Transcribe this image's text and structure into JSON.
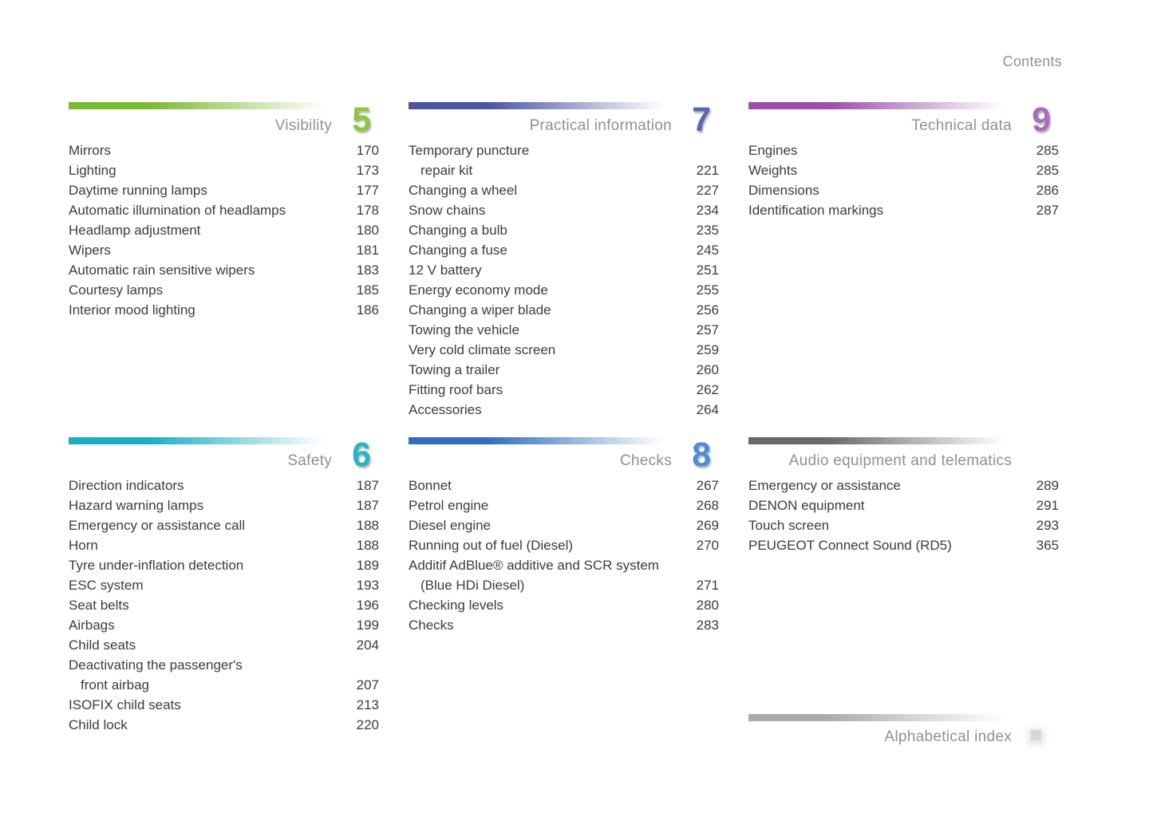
{
  "header": {
    "title": "Contents"
  },
  "footer": {
    "alphabetical_index": "Alphabetical index",
    "bar_color": "#a9abad"
  },
  "sections": [
    {
      "id": "visibility",
      "title": "Visibility",
      "number": "5",
      "number_color": "#8ec63f",
      "bar_color": "#79b933",
      "items": [
        {
          "lines": [
            "Mirrors"
          ],
          "page": "170"
        },
        {
          "lines": [
            "Lighting"
          ],
          "page": "173"
        },
        {
          "lines": [
            "Daytime running lamps"
          ],
          "page": "177"
        },
        {
          "lines": [
            "Automatic illumination of headlamps"
          ],
          "page": "178"
        },
        {
          "lines": [
            "Headlamp adjustment"
          ],
          "page": "180"
        },
        {
          "lines": [
            "Wipers"
          ],
          "page": "181"
        },
        {
          "lines": [
            "Automatic rain sensitive wipers"
          ],
          "page": "183"
        },
        {
          "lines": [
            "Courtesy lamps"
          ],
          "page": "185"
        },
        {
          "lines": [
            "Interior mood lighting"
          ],
          "page": "186"
        }
      ]
    },
    {
      "id": "practical-information",
      "title": "Practical information",
      "number": "7",
      "number_color": "#5b68b2",
      "bar_color": "#4d55a1",
      "items": [
        {
          "lines": [
            "Temporary puncture",
            "repair kit"
          ],
          "page": "221"
        },
        {
          "lines": [
            "Changing a wheel"
          ],
          "page": "227"
        },
        {
          "lines": [
            "Snow chains"
          ],
          "page": "234"
        },
        {
          "lines": [
            "Changing a bulb"
          ],
          "page": "235"
        },
        {
          "lines": [
            "Changing a fuse"
          ],
          "page": "245"
        },
        {
          "lines": [
            "12 V battery"
          ],
          "page": "251"
        },
        {
          "lines": [
            "Energy economy mode"
          ],
          "page": "255"
        },
        {
          "lines": [
            "Changing a wiper blade"
          ],
          "page": "256"
        },
        {
          "lines": [
            "Towing the vehicle"
          ],
          "page": "257"
        },
        {
          "lines": [
            "Very cold climate screen"
          ],
          "page": "259"
        },
        {
          "lines": [
            "Towing a trailer"
          ],
          "page": "260"
        },
        {
          "lines": [
            "Fitting roof bars"
          ],
          "page": "262"
        },
        {
          "lines": [
            "Accessories"
          ],
          "page": "264"
        }
      ]
    },
    {
      "id": "technical-data",
      "title": "Technical data",
      "number": "9",
      "number_color": "#a56dbc",
      "bar_color": "#9a50a8",
      "items": [
        {
          "lines": [
            "Engines"
          ],
          "page": "285"
        },
        {
          "lines": [
            "Weights"
          ],
          "page": "285"
        },
        {
          "lines": [
            "Dimensions"
          ],
          "page": "286"
        },
        {
          "lines": [
            "Identification markings"
          ],
          "page": "287"
        }
      ]
    },
    {
      "id": "safety",
      "title": "Safety",
      "number": "6",
      "number_color": "#29b3c7",
      "bar_color": "#17afc2",
      "items": [
        {
          "lines": [
            "Direction indicators"
          ],
          "page": "187"
        },
        {
          "lines": [
            "Hazard warning lamps"
          ],
          "page": "187"
        },
        {
          "lines": [
            "Emergency or assistance call"
          ],
          "page": "188"
        },
        {
          "lines": [
            "Horn"
          ],
          "page": "188"
        },
        {
          "lines": [
            "Tyre under-inflation detection"
          ],
          "page": "189"
        },
        {
          "lines": [
            "ESC system"
          ],
          "page": "193"
        },
        {
          "lines": [
            "Seat belts"
          ],
          "page": "196"
        },
        {
          "lines": [
            "Airbags"
          ],
          "page": "199"
        },
        {
          "lines": [
            "Child seats"
          ],
          "page": "204"
        },
        {
          "lines": [
            "Deactivating the passenger's",
            "front airbag"
          ],
          "page": "207"
        },
        {
          "lines": [
            "ISOFIX child seats"
          ],
          "page": "213"
        },
        {
          "lines": [
            "Child lock"
          ],
          "page": "220"
        }
      ]
    },
    {
      "id": "checks",
      "title": "Checks",
      "number": "8",
      "number_color": "#4b8ed6",
      "bar_color": "#2f70be",
      "items": [
        {
          "lines": [
            "Bonnet"
          ],
          "page": "267"
        },
        {
          "lines": [
            "Petrol engine"
          ],
          "page": "268"
        },
        {
          "lines": [
            "Diesel engine"
          ],
          "page": "269"
        },
        {
          "lines": [
            "Running out of fuel (Diesel)"
          ],
          "page": "270"
        },
        {
          "lines": [
            "Additif AdBlue® additive and SCR system",
            "(Blue HDi Diesel)"
          ],
          "page": "271"
        },
        {
          "lines": [
            "Checking levels"
          ],
          "page": "280"
        },
        {
          "lines": [
            "Checks"
          ],
          "page": "283"
        }
      ]
    },
    {
      "id": "audio-equipment-and-telematics",
      "title": "Audio equipment and telematics",
      "number": null,
      "number_color": null,
      "bar_color": "#68696b",
      "items": [
        {
          "lines": [
            "Emergency or assistance"
          ],
          "page": "289"
        },
        {
          "lines": [
            "DENON equipment"
          ],
          "page": "291"
        },
        {
          "lines": [
            "Touch screen"
          ],
          "page": "293"
        },
        {
          "lines": [
            "PEUGEOT Connect Sound (RD5)"
          ],
          "page": "365"
        }
      ]
    }
  ]
}
